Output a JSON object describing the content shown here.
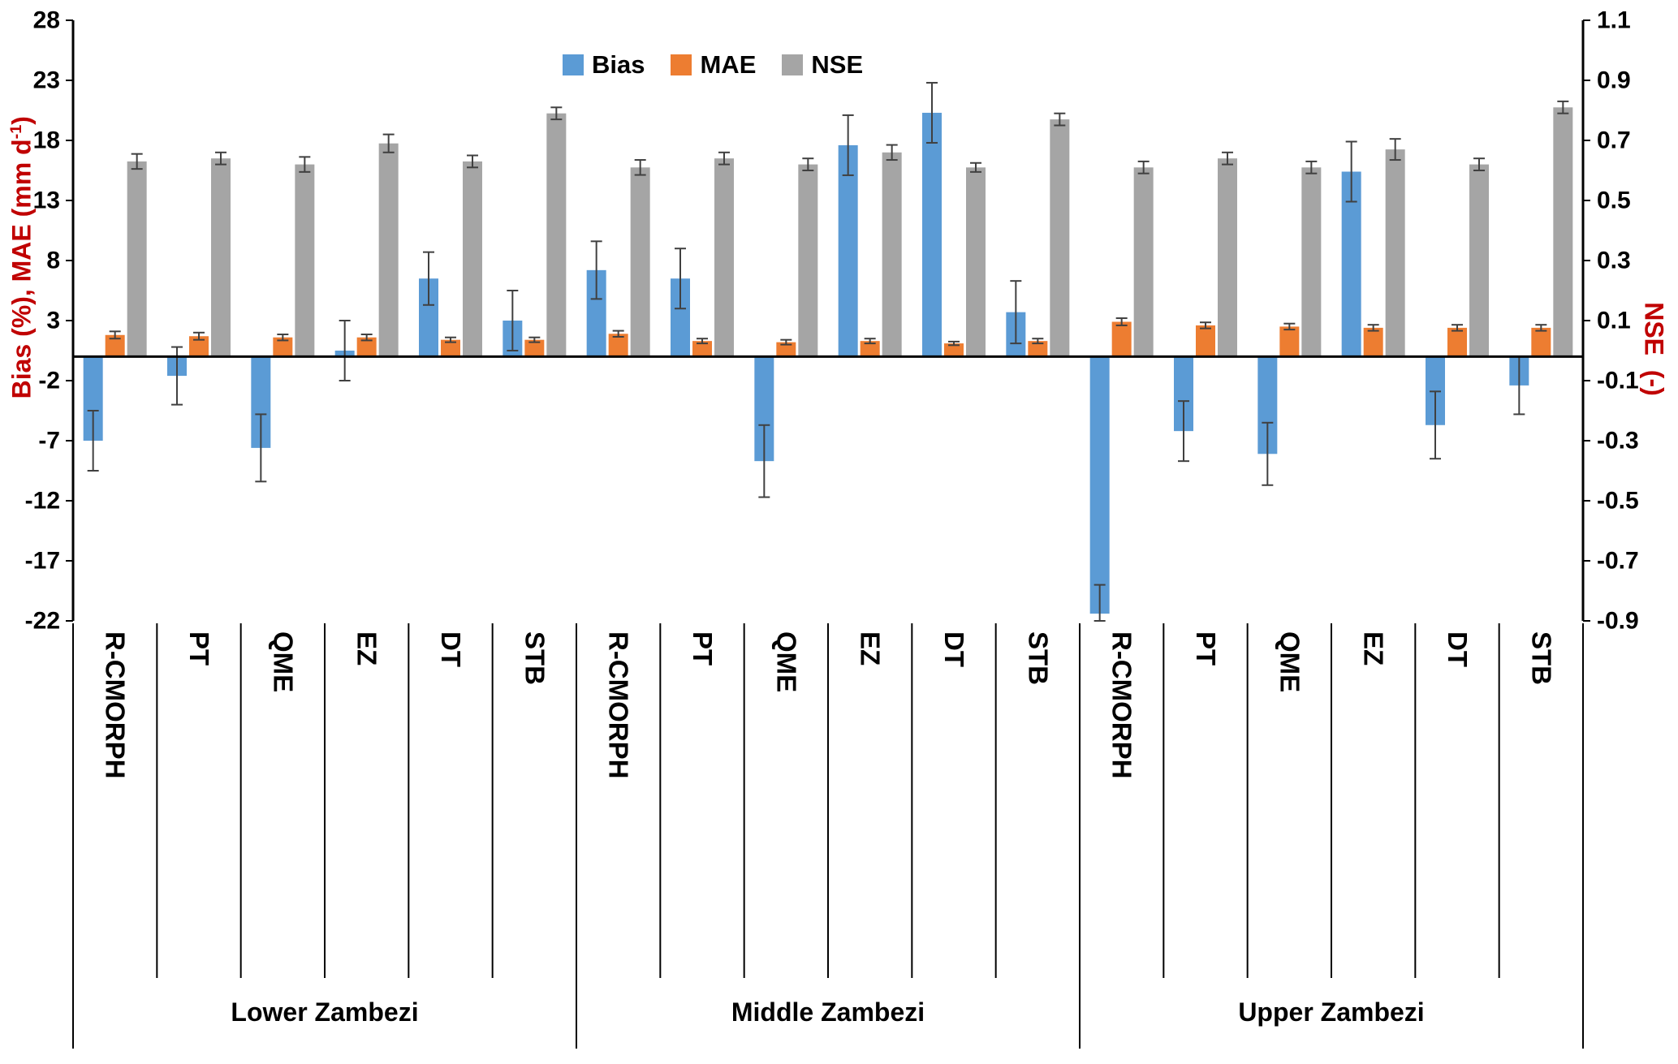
{
  "chart_data": {
    "type": "bar",
    "title": "",
    "legend_position": "top-center",
    "grid": false,
    "colors": {
      "bias": "#5B9BD5",
      "mae": "#ED7D31",
      "nse": "#A5A5A5",
      "axis_title": "#C00000",
      "error_bar": "#404040"
    },
    "legend": [
      {
        "label": "Bias",
        "color": "#5B9BD5"
      },
      {
        "label": "MAE",
        "color": "#ED7D31"
      },
      {
        "label": "NSE",
        "color": "#A5A5A5"
      }
    ],
    "left_axis": {
      "label_prefix": "Bias (%), MAE (mm d",
      "label_sup": "-1",
      "label_suffix": ")",
      "min": -22,
      "max": 28,
      "tick_step": 5,
      "ticks": [
        "28",
        "23",
        "18",
        "13",
        "8",
        "3",
        "-2",
        "-7",
        "-12",
        "-17",
        "-22"
      ]
    },
    "right_axis": {
      "label": "NSE  (-)",
      "min": -0.9,
      "max": 1.1,
      "tick_step": 0.2,
      "ticks": [
        "1.1",
        "0.9",
        "0.7",
        "0.5",
        "0.3",
        "0.1",
        "-0.1",
        "-0.3",
        "-0.5",
        "-0.7",
        "-0.9"
      ]
    },
    "groups": [
      {
        "name": "Lower Zambezi",
        "categories": [
          "R-CMORPH",
          "PT",
          "QME",
          "EZ",
          "DT",
          "STB"
        ],
        "bias": [
          -7.0,
          -1.6,
          -7.6,
          0.5,
          6.5,
          3.0
        ],
        "bias_err": [
          2.5,
          2.4,
          2.8,
          2.5,
          2.2,
          2.5
        ],
        "mae": [
          1.8,
          1.7,
          1.6,
          1.6,
          1.4,
          1.4
        ],
        "mae_err": [
          0.3,
          0.3,
          0.25,
          0.25,
          0.2,
          0.2
        ],
        "nse": [
          0.65,
          0.66,
          0.64,
          0.71,
          0.65,
          0.81
        ],
        "nse_err": [
          0.025,
          0.02,
          0.025,
          0.03,
          0.02,
          0.02
        ]
      },
      {
        "name": "Middle Zambezi",
        "categories": [
          "R-CMORPH",
          "PT",
          "QME",
          "EZ",
          "DT",
          "STB"
        ],
        "bias": [
          7.2,
          6.5,
          -8.7,
          17.6,
          20.3,
          3.7
        ],
        "bias_err": [
          2.4,
          2.5,
          3.0,
          2.5,
          2.5,
          2.6
        ],
        "mae": [
          1.9,
          1.3,
          1.2,
          1.3,
          1.1,
          1.3
        ],
        "mae_err": [
          0.25,
          0.2,
          0.2,
          0.2,
          0.15,
          0.2
        ],
        "nse": [
          0.63,
          0.66,
          0.64,
          0.68,
          0.63,
          0.79
        ],
        "nse_err": [
          0.025,
          0.02,
          0.02,
          0.025,
          0.015,
          0.02
        ]
      },
      {
        "name": "Upper Zambezi",
        "categories": [
          "R-CMORPH",
          "PT",
          "QME",
          "EZ",
          "DT",
          "STB"
        ],
        "bias": [
          -21.4,
          -6.2,
          -8.1,
          15.4,
          -5.7,
          -2.4
        ],
        "bias_err": [
          2.4,
          2.5,
          2.6,
          2.5,
          2.8,
          2.4
        ],
        "mae": [
          2.9,
          2.6,
          2.5,
          2.4,
          2.4,
          2.4
        ],
        "mae_err": [
          0.3,
          0.25,
          0.25,
          0.25,
          0.25,
          0.25
        ],
        "nse": [
          0.63,
          0.66,
          0.63,
          0.69,
          0.64,
          0.83
        ],
        "nse_err": [
          0.02,
          0.02,
          0.02,
          0.035,
          0.02,
          0.02
        ]
      }
    ]
  }
}
